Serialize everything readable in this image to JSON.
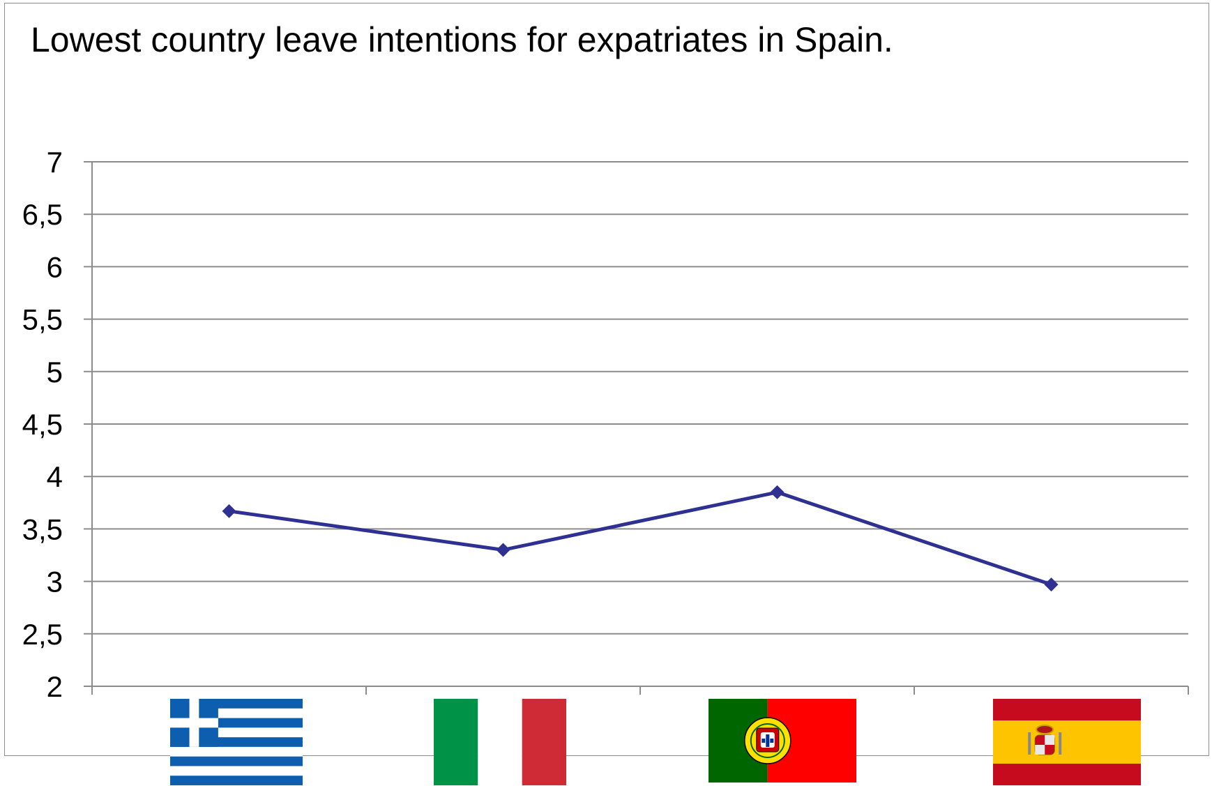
{
  "chart_data": {
    "type": "line",
    "title": "Lowest country leave intentions for expatriates in Spain.",
    "xlabel": "",
    "ylabel": "",
    "ylim": [
      2,
      7
    ],
    "yticks": [
      "2",
      "2,5",
      "3",
      "3,5",
      "4",
      "4,5",
      "5",
      "5,5",
      "6",
      "6,5",
      "7"
    ],
    "grid": true,
    "legend": "none",
    "categories": [
      "Greece",
      "Italy",
      "Portugal",
      "Spain"
    ],
    "category_icons": [
      "greece-flag-icon",
      "italy-flag-icon",
      "portugal-flag-icon",
      "spain-flag-icon"
    ],
    "series": [
      {
        "values": [
          3.67,
          3.3,
          3.85,
          2.97
        ],
        "color": "#2e3192"
      }
    ]
  },
  "colors": {
    "line": "#2e3192",
    "grid": "#8c8c8c",
    "greece_blue": "#0d5eaf",
    "italy_green": "#009246",
    "italy_red": "#ce2b37",
    "portugal_green": "#006600",
    "portugal_red": "#ff0000",
    "spain_red": "#c60b1e",
    "spain_yellow": "#ffc400"
  }
}
